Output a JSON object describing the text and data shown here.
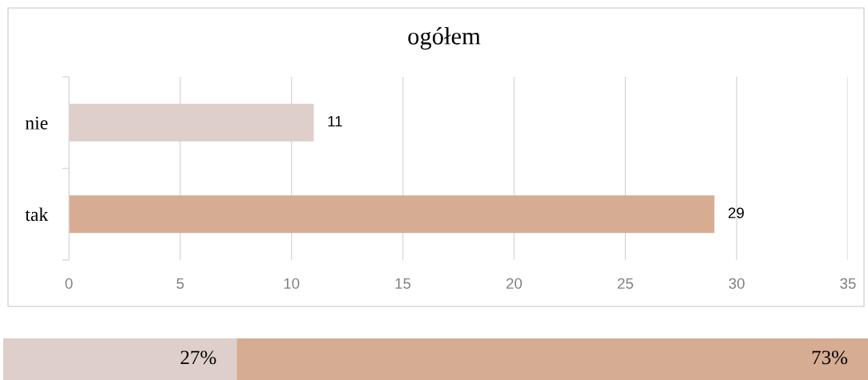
{
  "chart_data": [
    {
      "type": "bar",
      "orientation": "horizontal",
      "title": "ogółem",
      "categories": [
        "nie",
        "tak"
      ],
      "values": [
        11,
        29
      ],
      "colors": [
        "#decfcb",
        "#d6ac93"
      ],
      "xlim": [
        0,
        35
      ],
      "xticks": [
        0,
        5,
        10,
        15,
        20,
        25,
        30,
        35
      ],
      "grid": "x",
      "data_labels": true
    },
    {
      "type": "bar",
      "orientation": "horizontal",
      "stacked": true,
      "categories": [
        null
      ],
      "series": [
        {
          "color": "#decfcb",
          "values": [
            27
          ],
          "value_labels": [
            "27%"
          ]
        },
        {
          "color": "#d6ac93",
          "values": [
            73
          ],
          "value_labels": [
            "73%"
          ]
        }
      ],
      "xlim": [
        0,
        100
      ],
      "tick_labels": false
    }
  ]
}
